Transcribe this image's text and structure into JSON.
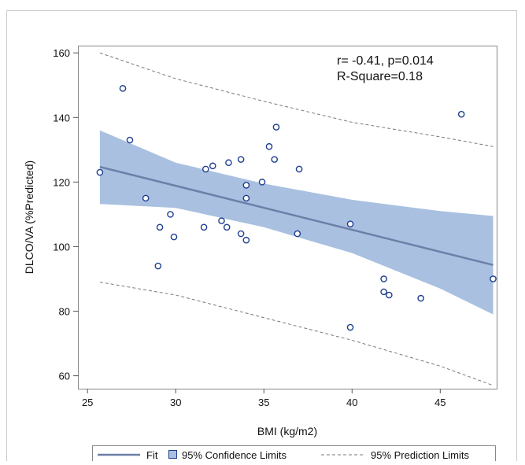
{
  "chart_data": {
    "type": "scatter",
    "title": "",
    "xlabel": "BMI (kg/m2)",
    "ylabel": "DLCO/VA (%Predicted)",
    "xlim": [
      24.5,
      48.2
    ],
    "ylim": [
      56,
      162
    ],
    "x_ticks": [
      25,
      30,
      35,
      40,
      45
    ],
    "y_ticks": [
      60,
      80,
      100,
      120,
      140,
      160
    ],
    "grid": false,
    "legend_position": "bottom",
    "annotations": [
      "r= -0.41, p=0.014",
      "R-Square=0.18"
    ],
    "legend": {
      "fit_label": "Fit",
      "confidence_label": "95% Confidence Limits",
      "prediction_label": "95% Prediction Limits"
    },
    "colors": {
      "points": "#1f3f8f",
      "fit_line": "#6c7fa8",
      "confidence_band": "#a9c0e0",
      "prediction_line": "#7a7a7a"
    },
    "points": [
      {
        "x": 25.7,
        "y": 123
      },
      {
        "x": 27.0,
        "y": 149
      },
      {
        "x": 27.4,
        "y": 133
      },
      {
        "x": 28.3,
        "y": 115
      },
      {
        "x": 29.0,
        "y": 94
      },
      {
        "x": 29.1,
        "y": 106
      },
      {
        "x": 29.7,
        "y": 110
      },
      {
        "x": 29.9,
        "y": 103
      },
      {
        "x": 31.6,
        "y": 106
      },
      {
        "x": 31.7,
        "y": 124
      },
      {
        "x": 32.1,
        "y": 125
      },
      {
        "x": 32.6,
        "y": 108
      },
      {
        "x": 32.9,
        "y": 106
      },
      {
        "x": 33.0,
        "y": 126
      },
      {
        "x": 33.7,
        "y": 127
      },
      {
        "x": 33.7,
        "y": 104
      },
      {
        "x": 34.0,
        "y": 115
      },
      {
        "x": 34.0,
        "y": 119
      },
      {
        "x": 34.0,
        "y": 102
      },
      {
        "x": 34.9,
        "y": 120
      },
      {
        "x": 35.3,
        "y": 131
      },
      {
        "x": 35.6,
        "y": 127
      },
      {
        "x": 35.7,
        "y": 137
      },
      {
        "x": 36.9,
        "y": 104
      },
      {
        "x": 37.0,
        "y": 124
      },
      {
        "x": 39.9,
        "y": 107
      },
      {
        "x": 39.9,
        "y": 75
      },
      {
        "x": 41.8,
        "y": 90
      },
      {
        "x": 41.8,
        "y": 86
      },
      {
        "x": 42.1,
        "y": 85
      },
      {
        "x": 43.9,
        "y": 84
      },
      {
        "x": 46.2,
        "y": 141
      },
      {
        "x": 48.0,
        "y": 90
      }
    ],
    "fit": {
      "x": [
        25.7,
        48.0
      ],
      "y": [
        124.7,
        94.3
      ]
    },
    "confidence_band": {
      "x": [
        25.7,
        30,
        35,
        40,
        45,
        48.0
      ],
      "lower": [
        113.2,
        112.0,
        106.0,
        98.0,
        87.0,
        79.0
      ],
      "upper": [
        136.0,
        126.0,
        119.5,
        114.5,
        111.0,
        109.5
      ]
    },
    "prediction_upper": {
      "x": [
        25.7,
        30,
        35,
        40,
        45,
        48.0
      ],
      "y": [
        160.0,
        152.0,
        145.0,
        138.5,
        134.0,
        131.0
      ]
    },
    "prediction_lower": {
      "x": [
        25.7,
        30,
        35,
        40,
        45,
        48.0
      ],
      "y": [
        89.0,
        85.0,
        78.0,
        71.0,
        63.0,
        57.0
      ]
    }
  }
}
